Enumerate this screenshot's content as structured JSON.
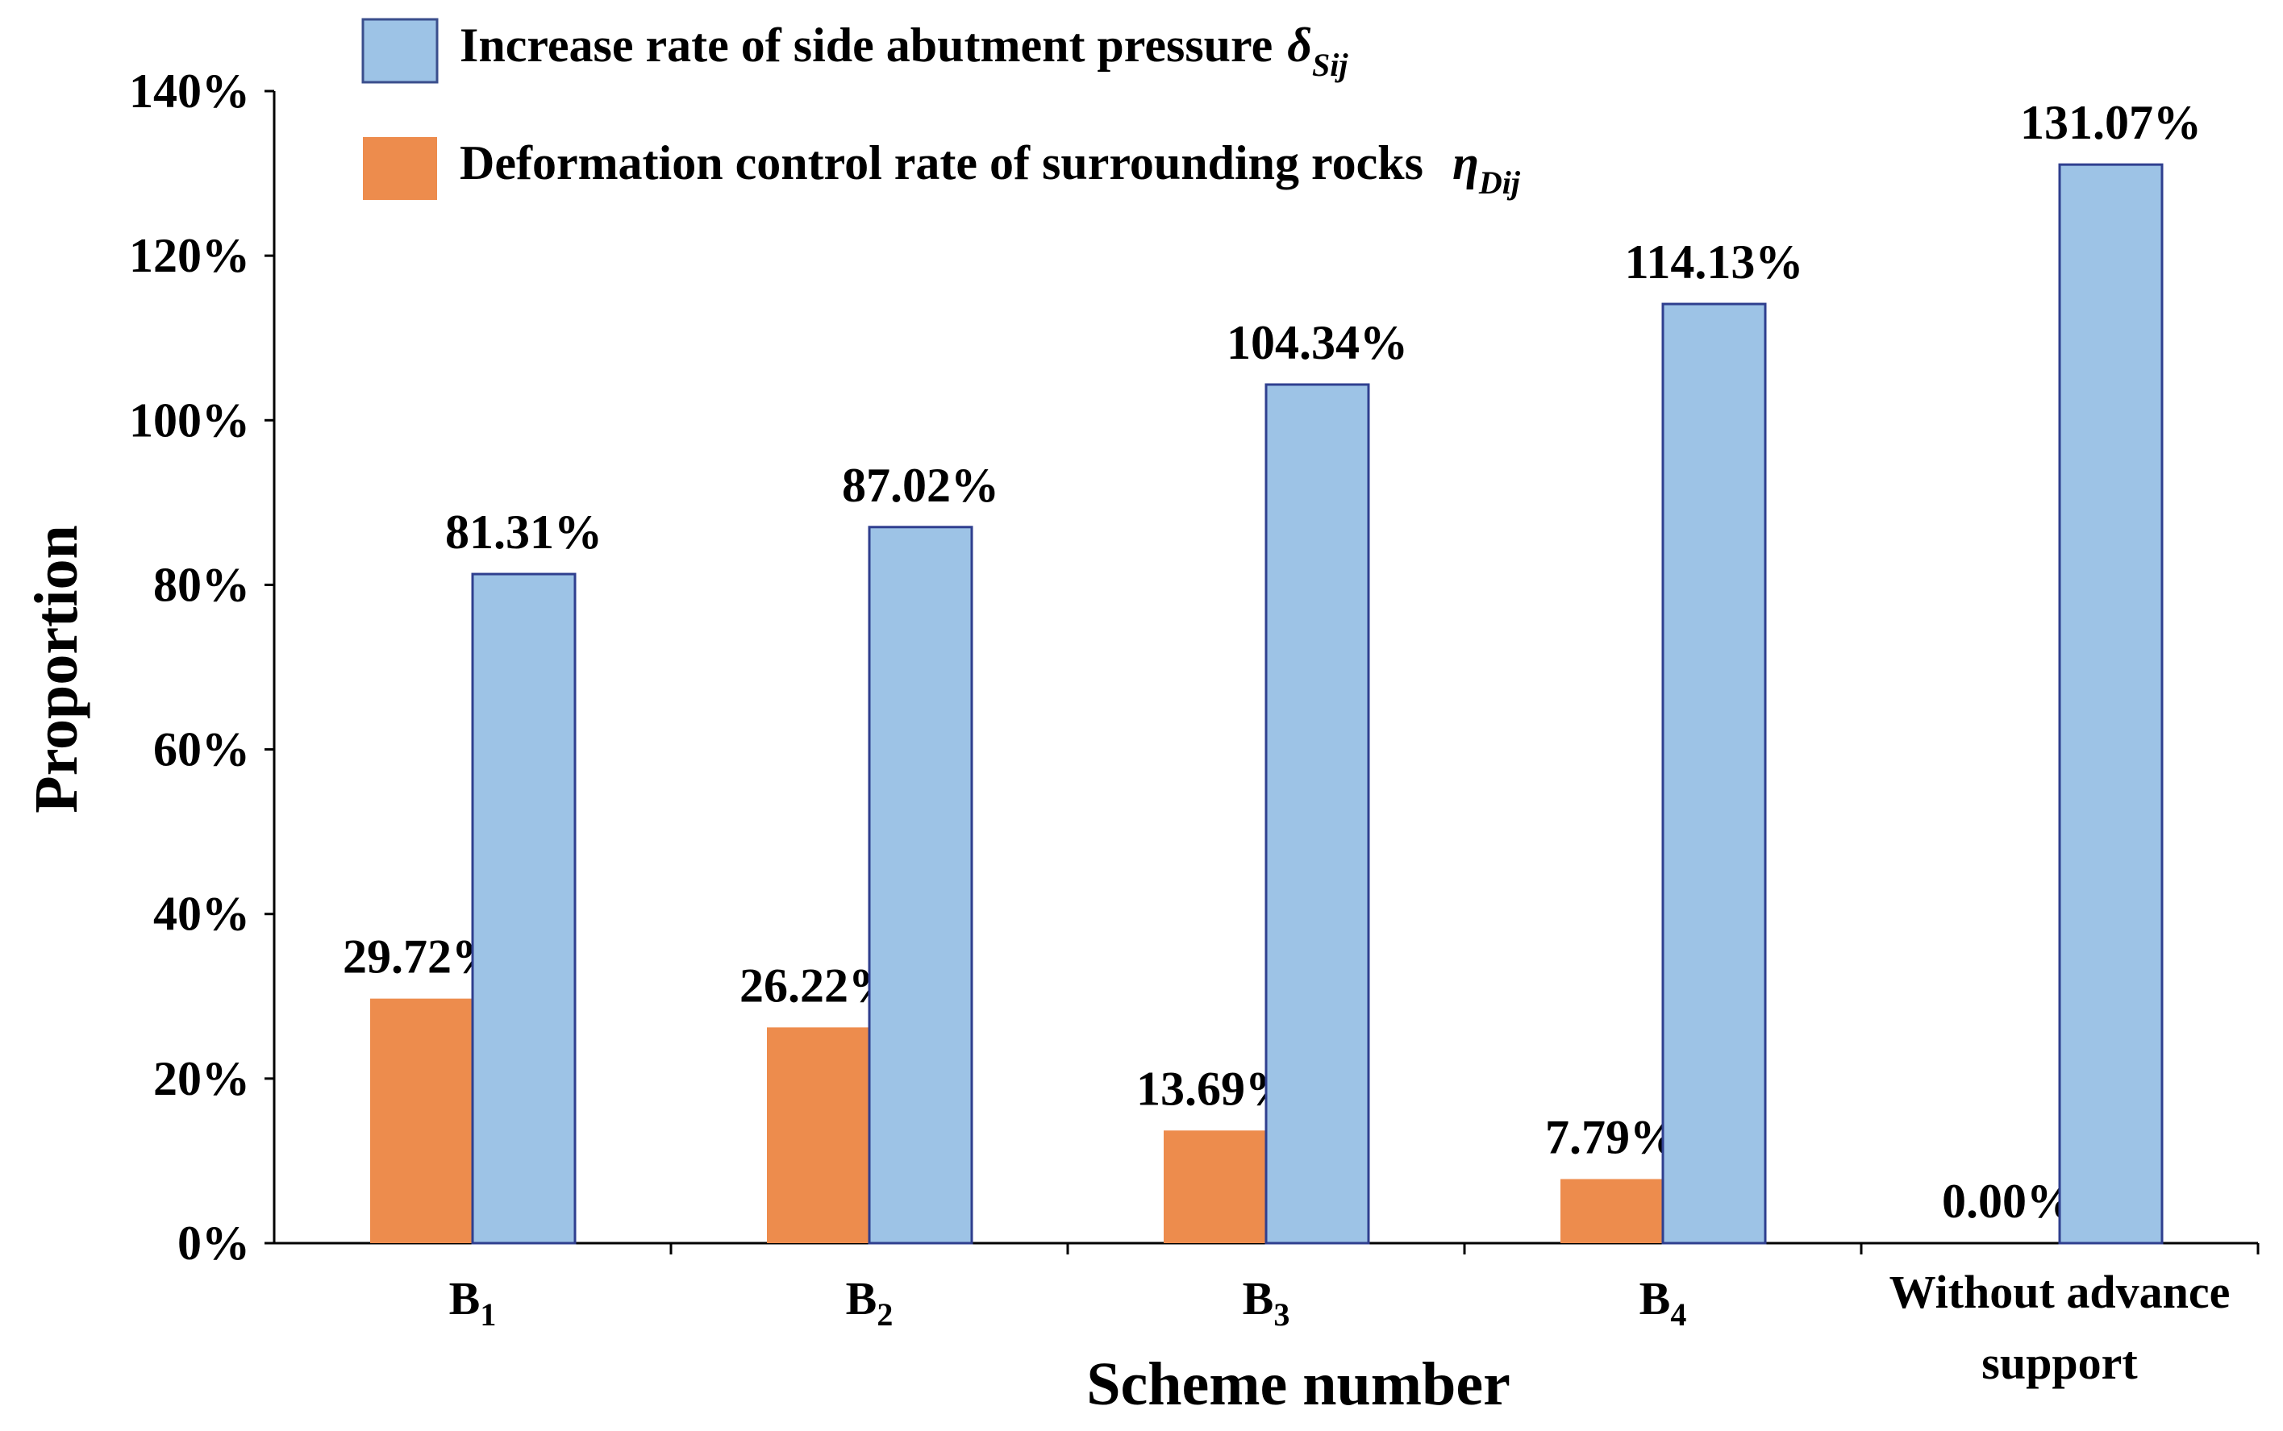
{
  "chart_data": {
    "type": "bar",
    "title": "",
    "xlabel": "Scheme number",
    "ylabel": "Proportion",
    "ylim": [
      0,
      140
    ],
    "ytick_step": 20,
    "ytick_suffix": "%",
    "grid": false,
    "legend_position": "top",
    "categories": [
      {
        "main": "B",
        "sub": "1"
      },
      {
        "main": "B",
        "sub": "2"
      },
      {
        "main": "B",
        "sub": "3"
      },
      {
        "main": "B",
        "sub": "4"
      },
      {
        "main": "Without advance",
        "line2": "support"
      }
    ],
    "series": [
      {
        "name": "Deformation control rate of surrounding rocks",
        "symbol": "η",
        "symbol_sub": "Dij",
        "color": "#ED8C4D",
        "values": [
          29.72,
          26.22,
          13.69,
          7.79,
          0.0
        ],
        "labels": [
          "29.72%",
          "26.22%",
          "13.69%",
          "7.79%",
          "0.00%"
        ]
      },
      {
        "name": "Increase rate of side abutment pressure",
        "symbol": "δ",
        "symbol_sub": "Sij",
        "color": "#9DC3E6",
        "values": [
          81.31,
          87.02,
          104.34,
          114.13,
          131.07
        ],
        "labels": [
          "81.31%",
          "87.02%",
          "104.34%",
          "114.13%",
          "131.07%"
        ]
      }
    ]
  }
}
